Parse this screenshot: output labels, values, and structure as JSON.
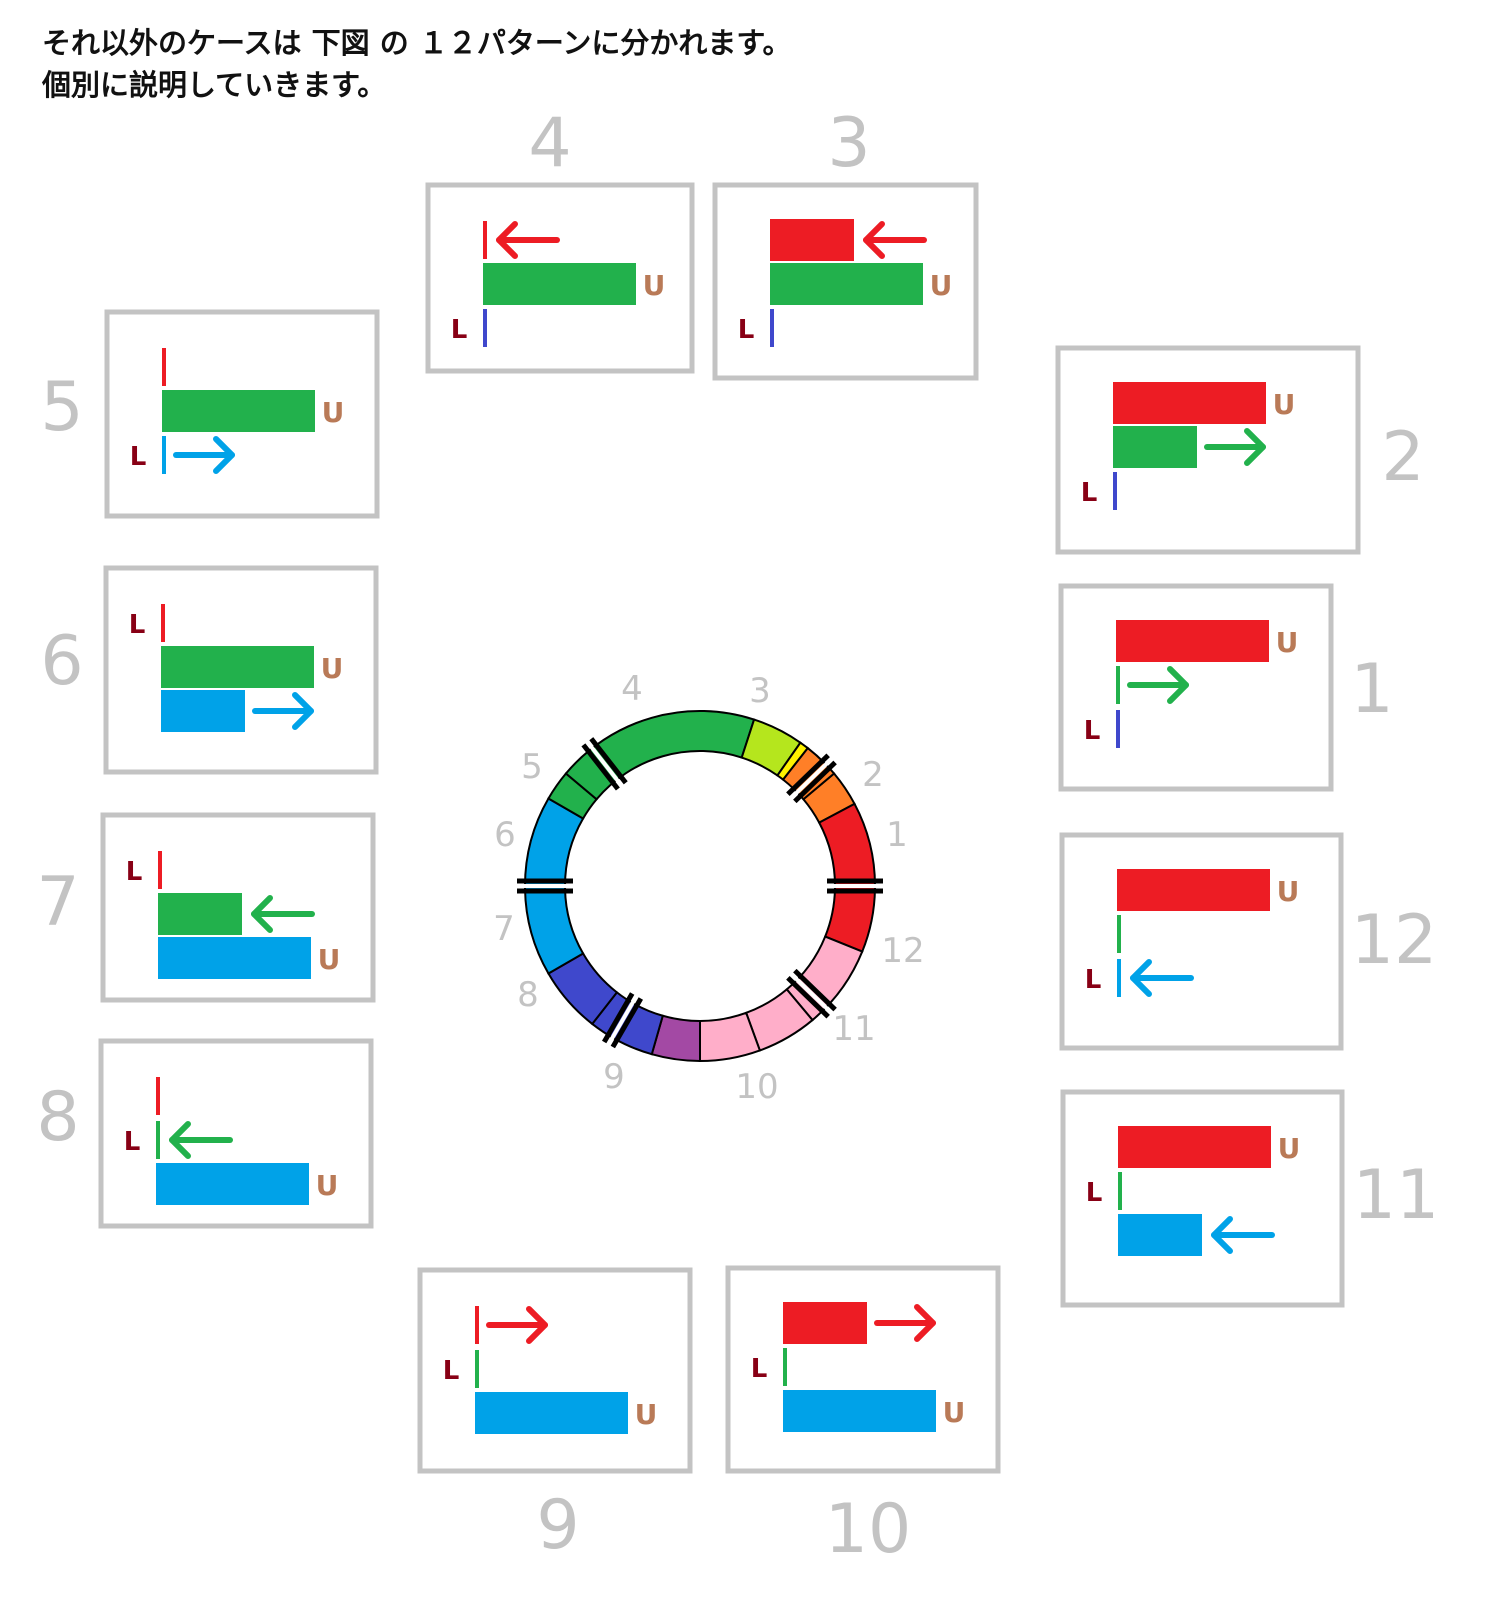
{
  "intro": {
    "line1": "それ以外のケースは 下図 の １２パターンに分かれます。",
    "line2": "個別に説明していきます。"
  },
  "letters": {
    "lower": "L",
    "upper": "U"
  },
  "colors": {
    "red": "#ed1c24",
    "green": "#22b14c",
    "blue": "#00a2e8",
    "indigo": "#3f48cc",
    "box_border": "#c3c3c3",
    "number_gray": "#c3c3c3",
    "label_L": "#880015",
    "label_U": "#b97a57"
  },
  "cases": [
    {
      "number": "1",
      "bars": [
        {
          "color": "red",
          "role": "upper"
        },
        {
          "color": "green",
          "role": "tick",
          "arrow": "right"
        },
        {
          "color": "indigo",
          "role": "tick"
        }
      ]
    },
    {
      "number": "2",
      "bars": [
        {
          "color": "red",
          "role": "upper"
        },
        {
          "color": "green",
          "role": "partial",
          "arrow": "right"
        },
        {
          "color": "indigo",
          "role": "tick"
        }
      ]
    },
    {
      "number": "3",
      "bars": [
        {
          "color": "red",
          "role": "partial",
          "arrow": "left"
        },
        {
          "color": "green",
          "role": "upper"
        },
        {
          "color": "indigo",
          "role": "tick"
        }
      ]
    },
    {
      "number": "4",
      "bars": [
        {
          "color": "red",
          "role": "tick",
          "arrow": "left"
        },
        {
          "color": "green",
          "role": "upper"
        },
        {
          "color": "indigo",
          "role": "tick"
        }
      ]
    },
    {
      "number": "5",
      "bars": [
        {
          "color": "red",
          "role": "tick"
        },
        {
          "color": "green",
          "role": "upper"
        },
        {
          "color": "blue",
          "role": "tick",
          "arrow": "right"
        }
      ]
    },
    {
      "number": "6",
      "bars": [
        {
          "color": "red",
          "role": "tick"
        },
        {
          "color": "green",
          "role": "upper"
        },
        {
          "color": "blue",
          "role": "partial",
          "arrow": "right"
        }
      ]
    },
    {
      "number": "7",
      "bars": [
        {
          "color": "red",
          "role": "tick"
        },
        {
          "color": "green",
          "role": "partial",
          "arrow": "left"
        },
        {
          "color": "blue",
          "role": "upper"
        }
      ]
    },
    {
      "number": "8",
      "bars": [
        {
          "color": "red",
          "role": "tick"
        },
        {
          "color": "green",
          "role": "tick",
          "arrow": "left"
        },
        {
          "color": "blue",
          "role": "upper"
        }
      ]
    },
    {
      "number": "9",
      "bars": [
        {
          "color": "red",
          "role": "tick",
          "arrow": "right"
        },
        {
          "color": "green",
          "role": "tick"
        },
        {
          "color": "blue",
          "role": "upper"
        }
      ]
    },
    {
      "number": "10",
      "bars": [
        {
          "color": "red",
          "role": "partial",
          "arrow": "right"
        },
        {
          "color": "green",
          "role": "tick"
        },
        {
          "color": "blue",
          "role": "upper"
        }
      ]
    },
    {
      "number": "11",
      "bars": [
        {
          "color": "red",
          "role": "upper"
        },
        {
          "color": "green",
          "role": "tick"
        },
        {
          "color": "blue",
          "role": "partial",
          "arrow": "left"
        }
      ]
    },
    {
      "number": "12",
      "bars": [
        {
          "color": "red",
          "role": "upper"
        },
        {
          "color": "green",
          "role": "tick"
        },
        {
          "color": "blue",
          "role": "tick",
          "arrow": "left"
        }
      ]
    }
  ],
  "wheel": {
    "numbers": [
      "4",
      "3",
      "2",
      "1",
      "12",
      "11",
      "10",
      "9",
      "8",
      "7",
      "6",
      "5"
    ],
    "segment_colors": [
      "#ed1c24",
      "#ff7f27",
      "#fff200",
      "#b5e61d",
      "#22b14c",
      "#00a2e8",
      "#3f48cc",
      "#a349a4",
      "#ffaec9"
    ]
  }
}
